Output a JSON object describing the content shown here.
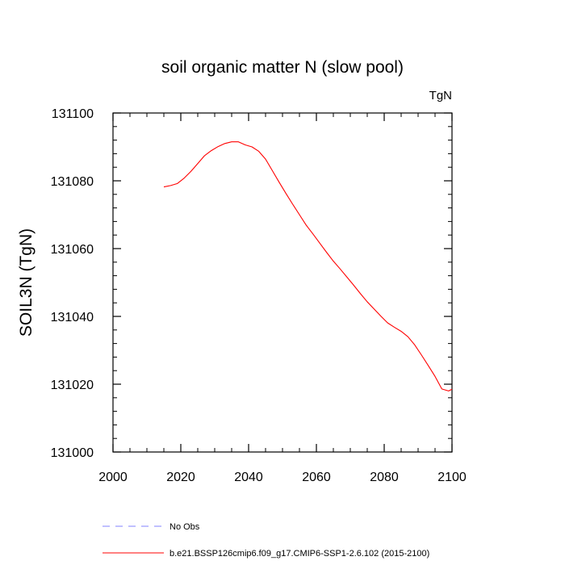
{
  "chart_data": {
    "type": "line",
    "title": "soil organic matter N (slow pool)",
    "units": "TgN",
    "xlabel": "",
    "ylabel": "SOIL3N  (TgN)",
    "xlim": [
      2000,
      2100
    ],
    "ylim": [
      131000,
      131100
    ],
    "xticks": [
      2000,
      2020,
      2040,
      2060,
      2080,
      2100
    ],
    "yticks": [
      131000,
      131020,
      131040,
      131060,
      131080,
      131100
    ],
    "xtick_labels": [
      "2000",
      "2020",
      "2040",
      "2060",
      "2080",
      "2100"
    ],
    "ytick_labels": [
      "131000",
      "131020",
      "131040",
      "131060",
      "131080",
      "131100"
    ],
    "series": [
      {
        "name": "b.e21.BSSP126cmip6.f09_g17.CMIP6-SSP1-2.6.102 (2015-2100)",
        "color": "#ff0000",
        "style": "solid",
        "x": [
          2015,
          2017,
          2019,
          2021,
          2023,
          2025,
          2027,
          2029,
          2031,
          2033,
          2035,
          2037,
          2039,
          2041,
          2043,
          2045,
          2047,
          2049,
          2051,
          2053,
          2055,
          2057,
          2059,
          2061,
          2063,
          2065,
          2067,
          2069,
          2071,
          2073,
          2075,
          2077,
          2079,
          2081,
          2083,
          2085,
          2087,
          2089,
          2091,
          2093,
          2095,
          2097,
          2099,
          2100
        ],
        "y": [
          131078.2,
          131078.6,
          131079.2,
          131080.8,
          131082.8,
          131085.1,
          131087.4,
          131088.9,
          131090.1,
          131091.0,
          131091.5,
          131091.5,
          131090.6,
          131090.0,
          131088.7,
          131086.4,
          131083.0,
          131079.6,
          131076.3,
          131073.1,
          131070.0,
          131066.9,
          131064.3,
          131061.6,
          131058.9,
          131056.3,
          131054.0,
          131051.6,
          131049.2,
          131046.7,
          131044.3,
          131042.2,
          131040.1,
          131038.1,
          131036.8,
          131035.6,
          131034.0,
          131031.6,
          131028.6,
          131025.5,
          131022.3,
          131018.6,
          131018.0,
          131018.5
        ]
      },
      {
        "name": "No Obs",
        "color": "#8080ff",
        "style": "dashed",
        "x": [],
        "y": []
      }
    ],
    "legend": {
      "position": "bottom",
      "entries": [
        {
          "label": "No Obs",
          "color": "#8080ff",
          "style": "dashed"
        },
        {
          "label": "b.e21.BSSP126cmip6.f09_g17.CMIP6-SSP1-2.6.102 (2015-2100)",
          "color": "#ff0000",
          "style": "solid"
        }
      ]
    }
  }
}
